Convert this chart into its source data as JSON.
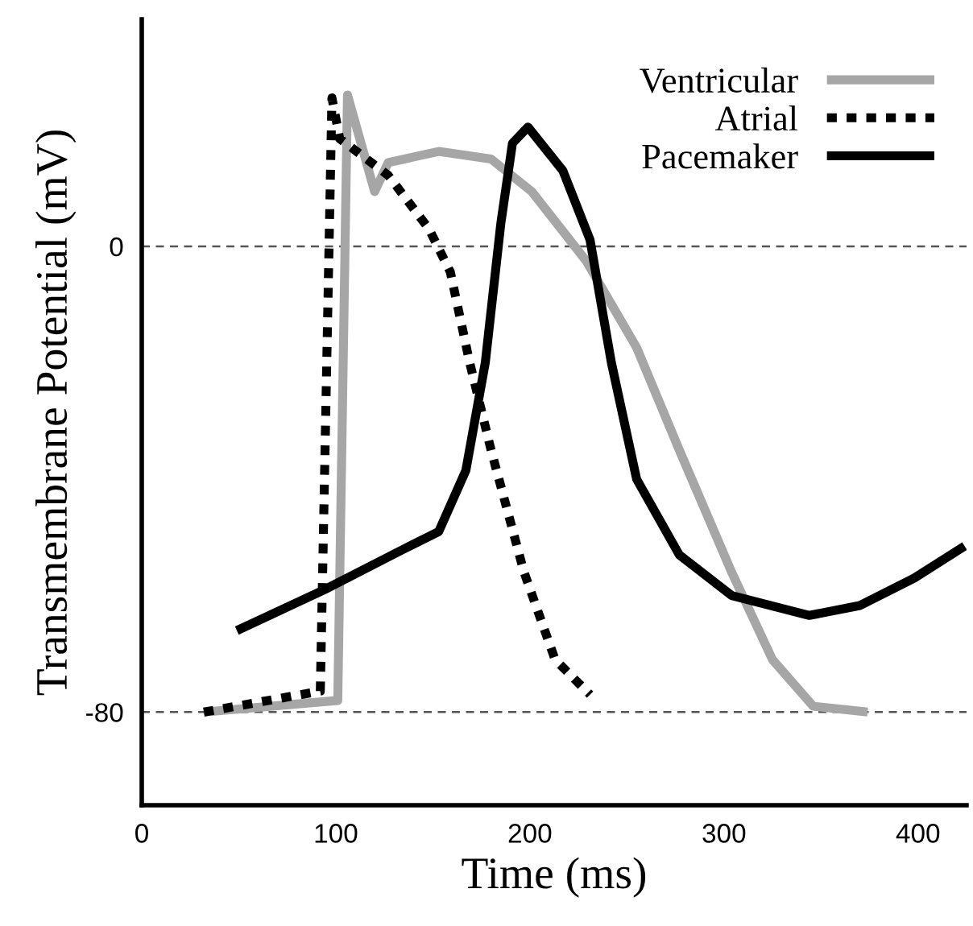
{
  "chart_data": {
    "type": "line",
    "xlabel": "Time (ms)",
    "ylabel": "Transmembrane Potential (mV)",
    "xlim": [
      0,
      425
    ],
    "xticks": [
      0,
      100,
      200,
      300,
      400
    ],
    "ylim": [
      -96,
      39
    ],
    "yticks": [
      0,
      {
        "value": -80,
        "label": "-80"
      }
    ],
    "grid": false,
    "legend": "top right",
    "ref_lines": [
      {
        "axis": "y",
        "value": 0,
        "color": "#555555",
        "line_style": "dashed"
      },
      {
        "axis": "y",
        "value": -80,
        "color": "#555555",
        "line_style": "dashed"
      }
    ],
    "series": [
      {
        "name": "Ventricular",
        "color": "#a6a6a6",
        "line_style": "solid",
        "x": [
          32,
          101,
          106,
          120,
          127,
          153,
          180,
          201,
          229,
          255,
          277,
          304,
          325,
          346,
          374
        ],
        "values": [
          -80,
          -78,
          26,
          9.4,
          14.4,
          16.3,
          15,
          9.4,
          -2.5,
          -17.4,
          -35,
          -56,
          -71,
          -79,
          -80
        ]
      },
      {
        "name": "Atrial",
        "color": "#000000",
        "line_style": "dotted",
        "x": [
          32,
          92,
          98,
          102,
          127,
          148,
          159,
          169,
          180,
          197,
          213,
          231
        ],
        "values": [
          -80,
          -76.4,
          25.5,
          18.5,
          12.2,
          3,
          -4.4,
          -20,
          -35,
          -56,
          -71,
          -77
        ]
      },
      {
        "name": "Pacemaker",
        "color": "#000000",
        "line_style": "solid",
        "x": [
          49,
          94,
          135,
          153,
          167,
          177,
          185,
          191,
          199,
          217,
          231,
          242,
          255,
          277,
          304,
          344,
          370,
          398,
          424
        ],
        "values": [
          -66,
          -59,
          -52,
          -49,
          -38.5,
          -20,
          3.9,
          17.7,
          20.5,
          13,
          1.1,
          -20,
          -40,
          -53,
          -60,
          -63.4,
          -61.7,
          -57,
          -51.5
        ]
      }
    ]
  }
}
